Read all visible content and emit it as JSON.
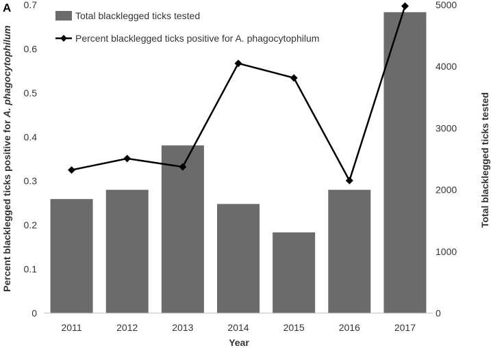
{
  "panel_label": "A",
  "chart_data": {
    "type": "bar",
    "categories": [
      "2011",
      "2012",
      "2013",
      "2014",
      "2015",
      "2016",
      "2017"
    ],
    "series": [
      {
        "name": "Total blacklegged ticks tested",
        "type": "bar",
        "axis": "right",
        "values": [
          1850,
          2000,
          2720,
          1770,
          1310,
          2000,
          4880
        ],
        "color": "#6b6b6b"
      },
      {
        "name": "Percent blacklegged ticks positive for A. phagocytophilum",
        "type": "line",
        "axis": "left",
        "values": [
          0.325,
          0.351,
          0.332,
          0.567,
          0.534,
          0.301,
          0.697
        ],
        "color": "#000000"
      }
    ],
    "xlabel": "Year",
    "ylabel_left": "Percent blacklegged ticks positive for A. phagocytophilum",
    "ylabel_left_parts": [
      "Percent blacklegged ticks positive for ",
      "A. phagocytophilum"
    ],
    "ylabel_right": "Total blacklegged ticks tested",
    "ylim_left": [
      0,
      0.7
    ],
    "yticks_left": [
      "0",
      "0.1",
      "0.2",
      "0.3",
      "0.4",
      "0.5",
      "0.6",
      "0.7"
    ],
    "ylim_right": [
      0,
      5000
    ],
    "yticks_right": [
      "0",
      "1000",
      "2000",
      "3000",
      "4000",
      "5000"
    ],
    "grid": false,
    "legend_position": "top-left"
  }
}
